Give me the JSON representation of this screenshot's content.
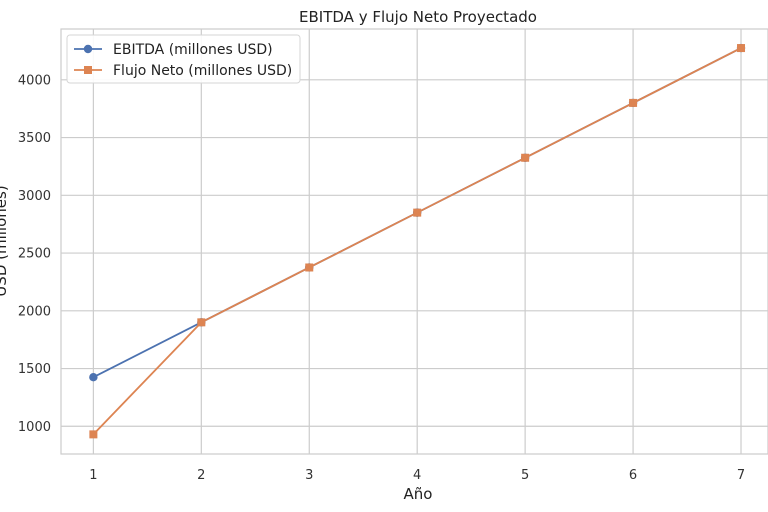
{
  "chart_data": {
    "type": "line",
    "title": "EBITDA y Flujo Neto Proyectado",
    "xlabel": "Año",
    "ylabel": "USD (millones)",
    "x": [
      1,
      2,
      3,
      4,
      5,
      6,
      7
    ],
    "xlim": [
      0.7,
      7.25
    ],
    "ylim": [
      760,
      4440
    ],
    "xticks": [
      1,
      2,
      3,
      4,
      5,
      6,
      7
    ],
    "yticks": [
      1000,
      1500,
      2000,
      2500,
      3000,
      3500,
      4000
    ],
    "grid": true,
    "legend_position": "top-left",
    "series": [
      {
        "name": "EBITDA (millones USD)",
        "color": "#4c72b0",
        "marker": "circle",
        "values": [
          1425,
          1900,
          2375,
          2850,
          3325,
          3800,
          4275
        ]
      },
      {
        "name": "Flujo Neto (millones USD)",
        "color": "#dd8452",
        "marker": "square",
        "values": [
          930,
          1900,
          2375,
          2850,
          3325,
          3800,
          4275
        ]
      }
    ]
  }
}
